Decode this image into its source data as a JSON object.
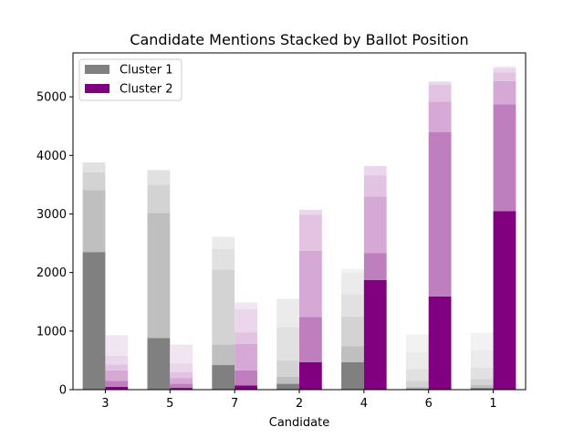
{
  "chart_data": {
    "type": "bar",
    "title": "Candidate Mentions Stacked by Ballot Position",
    "xlabel": "Candidate",
    "ylabel": "",
    "categories": [
      "3",
      "5",
      "7",
      "2",
      "4",
      "6",
      "1"
    ],
    "ylim": [
      0,
      5750
    ],
    "yticks": [
      0,
      1000,
      2000,
      3000,
      4000,
      5000
    ],
    "legend": {
      "placement": "top-left",
      "entries": [
        "Cluster 1",
        "Cluster 2"
      ]
    },
    "grid": false,
    "colors": {
      "cluster1": [
        "#808080",
        "#bfbfbf",
        "#d3d3d3",
        "#e1e1e1",
        "#ebebeb",
        "#f2f2f2"
      ],
      "cluster2": [
        "#800080",
        "#bf7fbf",
        "#d5a8d5",
        "#e2c3e2",
        "#ebd6eb",
        "#f2e5f2"
      ]
    },
    "series": [
      {
        "group": "Cluster 1",
        "segments_by_category": [
          [
            2350,
            1060,
            300,
            170,
            0,
            0
          ],
          [
            880,
            2140,
            480,
            250,
            0,
            0
          ],
          [
            420,
            350,
            1280,
            350,
            210,
            0
          ],
          [
            100,
            120,
            280,
            570,
            480,
            0
          ],
          [
            470,
            270,
            510,
            380,
            370,
            60
          ],
          [
            20,
            30,
            100,
            200,
            300,
            290
          ],
          [
            30,
            50,
            100,
            200,
            300,
            290
          ]
        ]
      },
      {
        "group": "Cluster 2",
        "segments_by_category": [
          [
            50,
            100,
            180,
            100,
            150,
            350
          ],
          [
            30,
            70,
            100,
            100,
            150,
            320
          ],
          [
            70,
            260,
            450,
            200,
            400,
            110
          ],
          [
            470,
            770,
            1130,
            620,
            80,
            0
          ],
          [
            1870,
            460,
            970,
            360,
            160,
            0
          ],
          [
            1590,
            2810,
            520,
            290,
            50,
            0
          ],
          [
            3050,
            1820,
            400,
            150,
            70,
            30
          ]
        ]
      }
    ]
  }
}
